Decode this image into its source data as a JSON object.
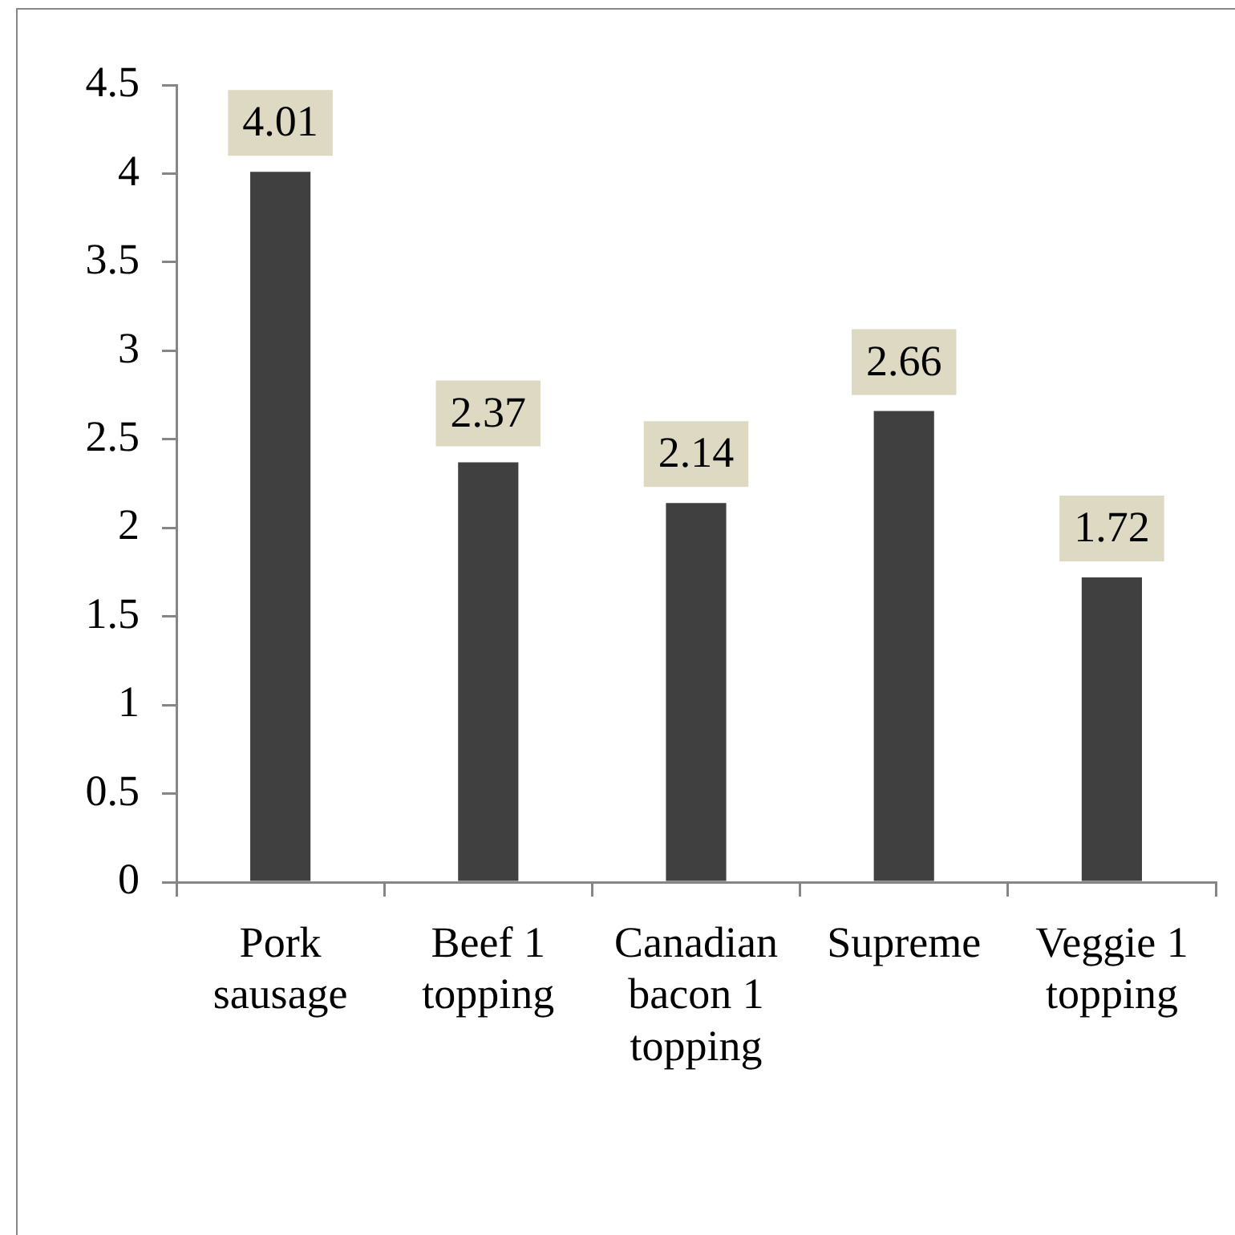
{
  "chart_data": {
    "type": "bar",
    "categories": [
      "Pork sausage",
      "Beef 1 topping",
      "Canadian bacon 1 topping",
      "Supreme",
      "Veggie 1 topping"
    ],
    "values": [
      4.01,
      2.37,
      2.14,
      2.66,
      1.72
    ],
    "color": "#404040",
    "ylim": [
      0,
      4.5
    ],
    "yticks": [
      0,
      0.5,
      1,
      1.5,
      2,
      2.5,
      3,
      3.5,
      4,
      4.5
    ],
    "data_labels": true
  }
}
